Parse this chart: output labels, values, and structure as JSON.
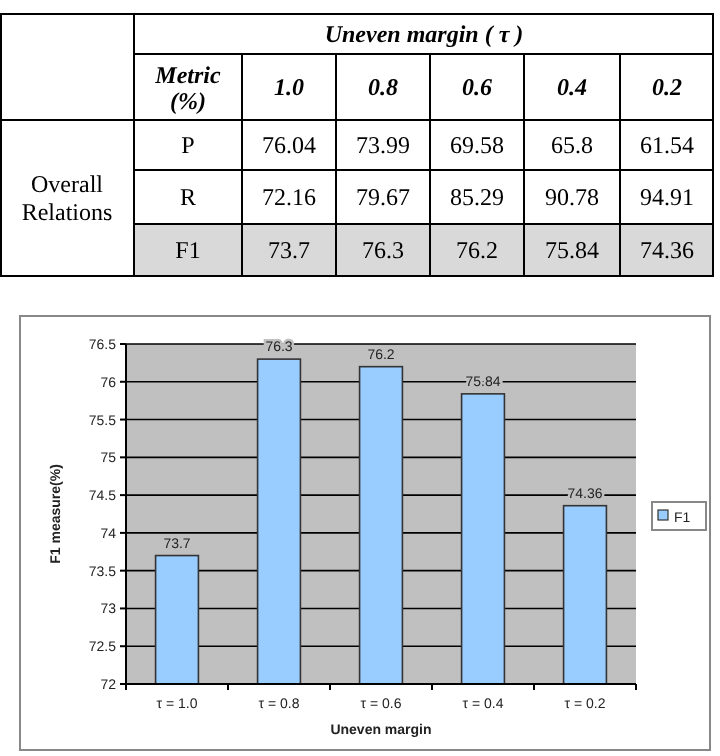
{
  "chart_data": [
    {
      "type": "heatmap",
      "title": "Uneven margin ( τ )",
      "categories": [
        "1.0",
        "0.8",
        "0.6",
        "0.4",
        "0.2"
      ],
      "y_categories": [
        "P",
        "R",
        "F1"
      ],
      "ylabel": "Overall Relations",
      "annotations": [
        "Metric (%)"
      ],
      "data_labels": true,
      "cells": [
        [
          76.04,
          73.99,
          69.58,
          65.8,
          61.54
        ],
        [
          72.16,
          79.67,
          85.29,
          90.78,
          94.91
        ],
        [
          73.7,
          76.3,
          76.2,
          75.84,
          74.36
        ]
      ]
    },
    {
      "type": "bar",
      "categories": [
        "τ = 1.0",
        "τ = 0.8",
        "τ = 0.6",
        "τ = 0.4",
        "τ = 0.2"
      ],
      "xlabel": "Uneven margin",
      "ylabel": "F1 measure(%)",
      "series": [
        {
          "name": "F1",
          "color": "#99ccff",
          "values": [
            73.7,
            76.3,
            76.2,
            75.84,
            74.36
          ]
        }
      ],
      "ylim": [
        72,
        76.5
      ],
      "yticks": [
        72,
        72.5,
        73,
        73.5,
        74,
        74.5,
        75,
        75.5,
        76,
        76.5
      ],
      "grid": "y",
      "legend": "right",
      "data_labels": true
    }
  ]
}
